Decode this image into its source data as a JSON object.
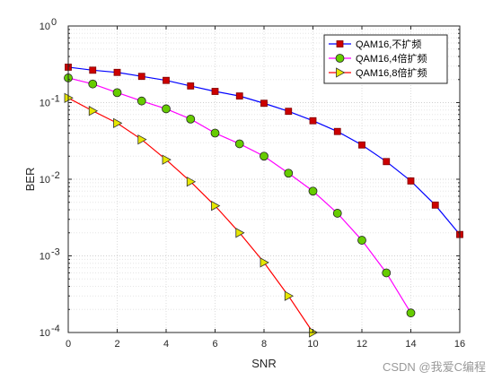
{
  "chart_data": {
    "type": "line",
    "xlabel": "SNR",
    "ylabel": "BER",
    "xlim": [
      0,
      16
    ],
    "ylim": [
      0.0001,
      1
    ],
    "yscale": "log",
    "xticks": [
      0,
      2,
      4,
      6,
      8,
      10,
      12,
      14,
      16
    ],
    "yticks": [
      {
        "value": 0.0001,
        "base": "10",
        "exp": "-4"
      },
      {
        "value": 0.001,
        "base": "10",
        "exp": "-3"
      },
      {
        "value": 0.01,
        "base": "10",
        "exp": "-2"
      },
      {
        "value": 0.1,
        "base": "10",
        "exp": "-1"
      },
      {
        "value": 1,
        "base": "10",
        "exp": "0"
      }
    ],
    "grid": true,
    "legend_position": "top-right",
    "series": [
      {
        "name": "QAM16,不扩频",
        "color": "#0000ff",
        "marker": "square",
        "marker_color": "#cc0000",
        "x": [
          0,
          1,
          2,
          3,
          4,
          5,
          6,
          7,
          8,
          9,
          10,
          11,
          12,
          13,
          14,
          15,
          16
        ],
        "values": [
          0.29,
          0.265,
          0.248,
          0.22,
          0.195,
          0.165,
          0.14,
          0.122,
          0.098,
          0.077,
          0.058,
          0.042,
          0.028,
          0.017,
          0.0095,
          0.0046,
          0.0019
        ]
      },
      {
        "name": "QAM16,4倍扩频",
        "color": "#ff00ff",
        "marker": "circle",
        "marker_color": "#66cc00",
        "x": [
          0,
          1,
          2,
          3,
          4,
          5,
          6,
          7,
          8,
          9,
          10,
          11,
          12,
          13,
          14
        ],
        "values": [
          0.21,
          0.175,
          0.135,
          0.105,
          0.083,
          0.061,
          0.04,
          0.029,
          0.02,
          0.012,
          0.007,
          0.0036,
          0.0016,
          0.0006,
          0.00018
        ]
      },
      {
        "name": "QAM16,8倍扩频",
        "color": "#ff0000",
        "marker": "triangle-right",
        "marker_color": "#e6e600",
        "x": [
          0,
          1,
          2,
          3,
          4,
          5,
          6,
          7,
          8,
          9,
          10
        ],
        "values": [
          0.115,
          0.078,
          0.054,
          0.033,
          0.018,
          0.0093,
          0.0045,
          0.002,
          0.00082,
          0.0003,
          0.0001
        ]
      }
    ]
  },
  "watermark": "CSDN @我爱C编程"
}
